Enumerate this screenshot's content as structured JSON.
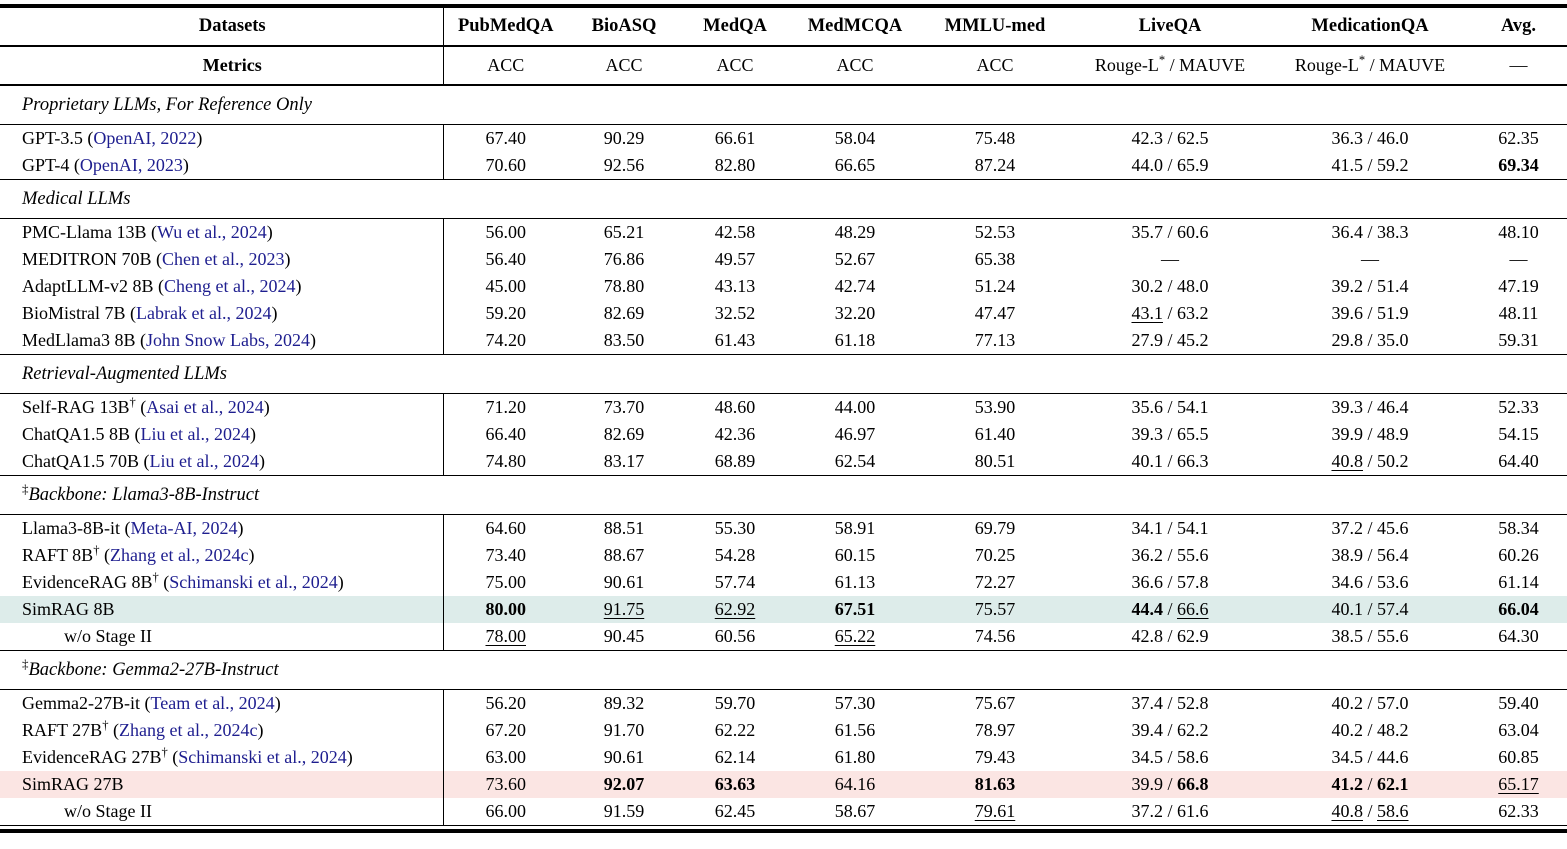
{
  "colors": {
    "citation_link": "#1e1e8f",
    "highlight_teal": "#ddecea",
    "highlight_pink": "#fbe5e3"
  },
  "table": {
    "corner_datasets": "Datasets",
    "corner_metrics": "Metrics",
    "columns": [
      "PubMedQA",
      "BioASQ",
      "MedQA",
      "MedMCQA",
      "MMLU-med",
      "LiveQA",
      "MedicationQA",
      "Avg."
    ],
    "metrics": [
      "ACC",
      "ACC",
      "ACC",
      "ACC",
      "ACC",
      "Rouge-L* / MAUVE",
      "Rouge-L* / MAUVE",
      "—"
    ],
    "emphasis_legend": {
      "bold_marker": "*text* = bold (best)",
      "underline_marker": "_text_ = underlined (second best)"
    },
    "sections": [
      {
        "label": "Proprietary LLMs, For Reference Only",
        "sup": "",
        "rows": [
          {
            "model": "GPT-3.5",
            "dagger": false,
            "cite": "OpenAI, 2022",
            "indent": false,
            "highlight": "",
            "cells": [
              "67.40",
              "90.29",
              "66.61",
              "58.04",
              "75.48",
              "42.3 / 62.5",
              "36.3 / 46.0",
              "62.35"
            ]
          },
          {
            "model": "GPT-4",
            "dagger": false,
            "cite": "OpenAI, 2023",
            "indent": false,
            "highlight": "",
            "cells": [
              "70.60",
              "92.56",
              "82.80",
              "66.65",
              "87.24",
              "44.0 / 65.9",
              "41.5 / 59.2",
              "*69.34*"
            ]
          }
        ]
      },
      {
        "label": "Medical LLMs",
        "sup": "",
        "rows": [
          {
            "model": "PMC-Llama 13B",
            "dagger": false,
            "cite": "Wu et al., 2024",
            "indent": false,
            "highlight": "",
            "cells": [
              "56.00",
              "65.21",
              "42.58",
              "48.29",
              "52.53",
              "35.7 / 60.6",
              "36.4 / 38.3",
              "48.10"
            ]
          },
          {
            "model": "MEDITRON 70B",
            "dagger": false,
            "cite": "Chen et al., 2023",
            "indent": false,
            "highlight": "",
            "cells": [
              "56.40",
              "76.86",
              "49.57",
              "52.67",
              "65.38",
              "—",
              "—",
              "—"
            ]
          },
          {
            "model": "AdaptLLM-v2 8B",
            "dagger": false,
            "cite": "Cheng et al., 2024",
            "indent": false,
            "highlight": "",
            "cells": [
              "45.00",
              "78.80",
              "43.13",
              "42.74",
              "51.24",
              "30.2 / 48.0",
              "39.2 / 51.4",
              "47.19"
            ]
          },
          {
            "model": "BioMistral 7B",
            "dagger": false,
            "cite": "Labrak et al., 2024",
            "indent": false,
            "highlight": "",
            "cells": [
              "59.20",
              "82.69",
              "32.52",
              "32.20",
              "47.47",
              "_43.1_ / 63.2",
              "39.6 / 51.9",
              "48.11"
            ]
          },
          {
            "model": "MedLlama3 8B",
            "dagger": false,
            "cite": "John Snow Labs, 2024",
            "indent": false,
            "highlight": "",
            "cells": [
              "74.20",
              "83.50",
              "61.43",
              "61.18",
              "77.13",
              "27.9 / 45.2",
              "29.8 / 35.0",
              "59.31"
            ]
          }
        ]
      },
      {
        "label": "Retrieval-Augmented LLMs",
        "sup": "",
        "rows": [
          {
            "model": "Self-RAG 13B",
            "dagger": true,
            "cite": "Asai et al., 2024",
            "indent": false,
            "highlight": "",
            "cells": [
              "71.20",
              "73.70",
              "48.60",
              "44.00",
              "53.90",
              "35.6 / 54.1",
              "39.3 / 46.4",
              "52.33"
            ]
          },
          {
            "model": "ChatQA1.5 8B",
            "dagger": false,
            "cite": "Liu et al., 2024",
            "indent": false,
            "highlight": "",
            "cells": [
              "66.40",
              "82.69",
              "42.36",
              "46.97",
              "61.40",
              "39.3 / 65.5",
              "39.9 / 48.9",
              "54.15"
            ]
          },
          {
            "model": "ChatQA1.5 70B",
            "dagger": false,
            "cite": "Liu et al., 2024",
            "indent": false,
            "highlight": "",
            "cells": [
              "74.80",
              "83.17",
              "68.89",
              "62.54",
              "80.51",
              "40.1 / 66.3",
              "_40.8_ / 50.2",
              "64.40"
            ]
          }
        ]
      },
      {
        "label": "Backbone: Llama3-8B-Instruct",
        "sup": "‡",
        "rows": [
          {
            "model": "Llama3-8B-it",
            "dagger": false,
            "cite": "Meta-AI, 2024",
            "indent": false,
            "highlight": "",
            "cells": [
              "64.60",
              "88.51",
              "55.30",
              "58.91",
              "69.79",
              "34.1 / 54.1",
              "37.2 / 45.6",
              "58.34"
            ]
          },
          {
            "model": "RAFT 8B",
            "dagger": true,
            "cite": "Zhang et al., 2024c",
            "indent": false,
            "highlight": "",
            "cells": [
              "73.40",
              "88.67",
              "54.28",
              "60.15",
              "70.25",
              "36.2 / 55.6",
              "38.9 / 56.4",
              "60.26"
            ]
          },
          {
            "model": "EvidenceRAG 8B",
            "dagger": true,
            "cite": "Schimanski et al., 2024",
            "indent": false,
            "highlight": "",
            "cells": [
              "75.00",
              "90.61",
              "57.74",
              "61.13",
              "72.27",
              "36.6 / 57.8",
              "34.6 / 53.6",
              "61.14"
            ]
          },
          {
            "model": "SimRAG 8B",
            "dagger": false,
            "cite": "",
            "indent": false,
            "highlight": "teal",
            "cells": [
              "*80.00*",
              "_91.75_",
              "_62.92_",
              "*67.51*",
              "75.57",
              "*44.4* / _66.6_",
              "40.1 / 57.4",
              "*66.04*"
            ]
          },
          {
            "model": "w/o Stage II",
            "dagger": false,
            "cite": "",
            "indent": true,
            "highlight": "",
            "cells": [
              "_78.00_",
              "90.45",
              "60.56",
              "_65.22_",
              "74.56",
              "42.8 / 62.9",
              "38.5 / 55.6",
              "64.30"
            ]
          }
        ]
      },
      {
        "label": "Backbone: Gemma2-27B-Instruct",
        "sup": "‡",
        "rows": [
          {
            "model": "Gemma2-27B-it",
            "dagger": false,
            "cite": "Team et al., 2024",
            "indent": false,
            "highlight": "",
            "cells": [
              "56.20",
              "89.32",
              "59.70",
              "57.30",
              "75.67",
              "37.4 / 52.8",
              "40.2 / 57.0",
              "59.40"
            ]
          },
          {
            "model": "RAFT 27B",
            "dagger": true,
            "cite": "Zhang et al., 2024c",
            "indent": false,
            "highlight": "",
            "cells": [
              "67.20",
              "91.70",
              "62.22",
              "61.56",
              "78.97",
              "39.4 / 62.2",
              "40.2 / 48.2",
              "63.04"
            ]
          },
          {
            "model": "EvidenceRAG 27B",
            "dagger": true,
            "cite": "Schimanski et al., 2024",
            "indent": false,
            "highlight": "",
            "cells": [
              "63.00",
              "90.61",
              "62.14",
              "61.80",
              "79.43",
              "34.5 / 58.6",
              "34.5 / 44.6",
              "60.85"
            ]
          },
          {
            "model": "SimRAG 27B",
            "dagger": false,
            "cite": "",
            "indent": false,
            "highlight": "pink",
            "cells": [
              "73.60",
              "*92.07*",
              "*63.63*",
              "64.16",
              "*81.63*",
              "39.9 / *66.8*",
              "*41.2* / *62.1*",
              "_65.17_"
            ]
          },
          {
            "model": "w/o Stage II",
            "dagger": false,
            "cite": "",
            "indent": true,
            "highlight": "",
            "cells": [
              "66.00",
              "91.59",
              "62.45",
              "58.67",
              "_79.61_",
              "37.2 / 61.6",
              "_40.8_ / _58.6_",
              "62.33"
            ]
          }
        ]
      }
    ]
  }
}
